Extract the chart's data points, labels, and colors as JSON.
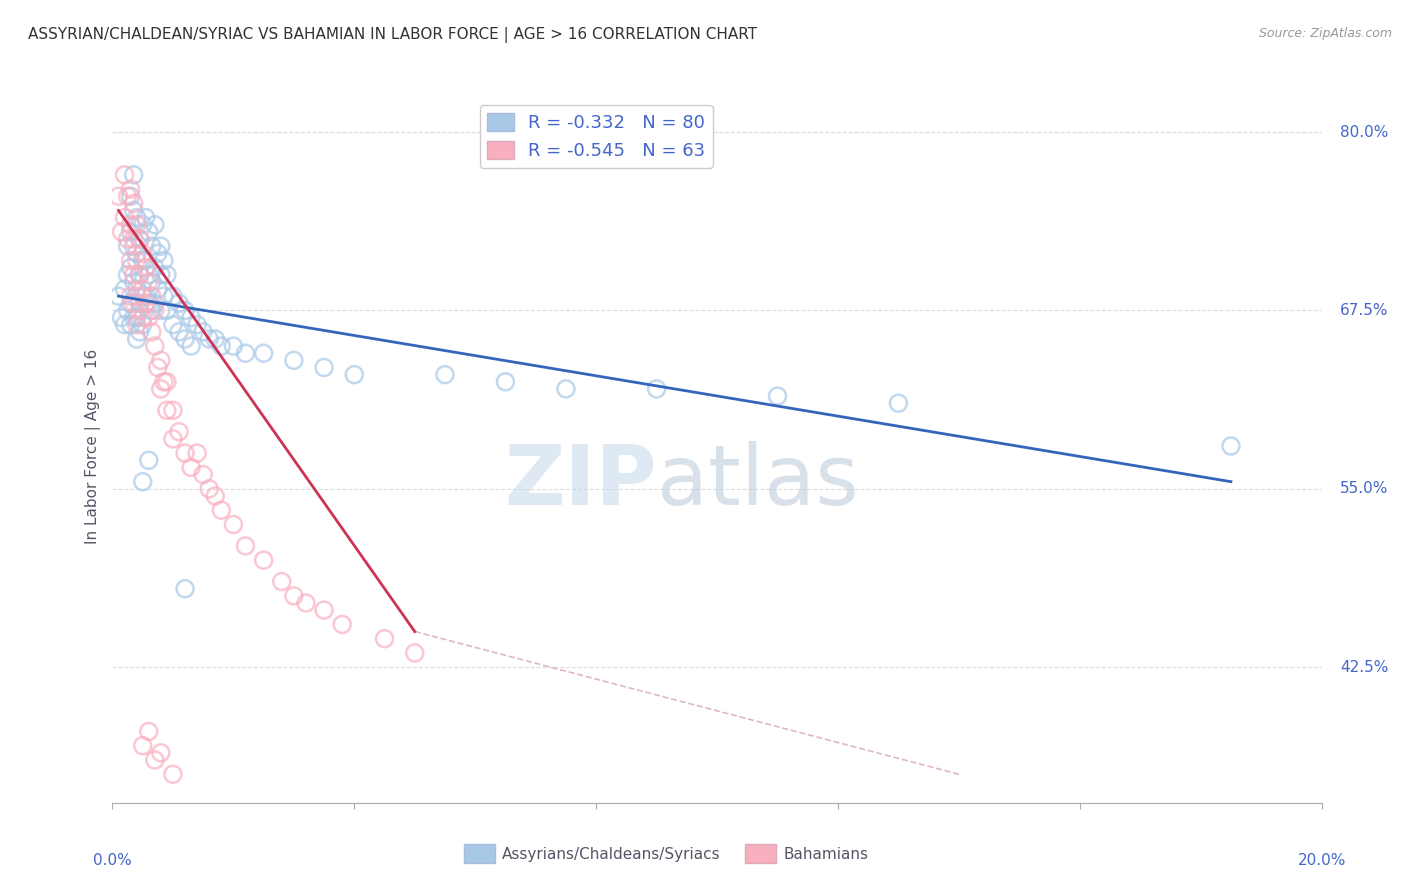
{
  "title": "ASSYRIAN/CHALDEAN/SYRIAC VS BAHAMIAN IN LABOR FORCE | AGE > 16 CORRELATION CHART",
  "source": "Source: ZipAtlas.com",
  "ylabel": "In Labor Force | Age > 16",
  "xlim": [
    0.0,
    20.0
  ],
  "ylim": [
    33.0,
    83.0
  ],
  "yticks": [
    42.5,
    55.0,
    67.5,
    80.0
  ],
  "ytick_labels": [
    "42.5%",
    "55.0%",
    "67.5%",
    "80.0%"
  ],
  "blue_R": -0.332,
  "blue_N": 80,
  "pink_R": -0.545,
  "pink_N": 63,
  "blue_color": "#a8c8e8",
  "pink_color": "#f8b0c0",
  "blue_line_color": "#3366bb",
  "pink_line_color": "#cc3355",
  "dashed_line_color": "#ddbbbb",
  "tick_label_color": "#4466cc",
  "background_color": "#ffffff",
  "grid_color": "#dddddd",
  "blue_scatter": [
    [
      0.1,
      68.5
    ],
    [
      0.15,
      67.0
    ],
    [
      0.2,
      69.0
    ],
    [
      0.2,
      66.5
    ],
    [
      0.25,
      72.0
    ],
    [
      0.25,
      70.0
    ],
    [
      0.25,
      67.5
    ],
    [
      0.3,
      75.5
    ],
    [
      0.3,
      73.0
    ],
    [
      0.3,
      70.5
    ],
    [
      0.3,
      68.0
    ],
    [
      0.3,
      66.5
    ],
    [
      0.35,
      77.0
    ],
    [
      0.35,
      74.5
    ],
    [
      0.35,
      72.0
    ],
    [
      0.35,
      69.5
    ],
    [
      0.35,
      67.0
    ],
    [
      0.4,
      74.0
    ],
    [
      0.4,
      71.5
    ],
    [
      0.4,
      69.0
    ],
    [
      0.4,
      67.0
    ],
    [
      0.4,
      65.5
    ],
    [
      0.45,
      72.5
    ],
    [
      0.45,
      70.0
    ],
    [
      0.45,
      68.0
    ],
    [
      0.45,
      66.0
    ],
    [
      0.5,
      73.5
    ],
    [
      0.5,
      71.0
    ],
    [
      0.5,
      68.5
    ],
    [
      0.5,
      66.5
    ],
    [
      0.55,
      74.0
    ],
    [
      0.55,
      71.0
    ],
    [
      0.55,
      68.5
    ],
    [
      0.6,
      73.0
    ],
    [
      0.6,
      70.0
    ],
    [
      0.6,
      68.0
    ],
    [
      0.65,
      72.0
    ],
    [
      0.65,
      69.5
    ],
    [
      0.65,
      67.5
    ],
    [
      0.7,
      73.5
    ],
    [
      0.7,
      70.5
    ],
    [
      0.7,
      68.0
    ],
    [
      0.75,
      71.5
    ],
    [
      0.75,
      69.0
    ],
    [
      0.8,
      72.0
    ],
    [
      0.8,
      70.0
    ],
    [
      0.8,
      67.5
    ],
    [
      0.85,
      71.0
    ],
    [
      0.85,
      68.5
    ],
    [
      0.9,
      70.0
    ],
    [
      0.9,
      67.5
    ],
    [
      1.0,
      68.5
    ],
    [
      1.0,
      66.5
    ],
    [
      1.1,
      68.0
    ],
    [
      1.1,
      66.0
    ],
    [
      1.2,
      67.5
    ],
    [
      1.2,
      65.5
    ],
    [
      1.3,
      67.0
    ],
    [
      1.3,
      65.0
    ],
    [
      1.4,
      66.5
    ],
    [
      1.5,
      66.0
    ],
    [
      1.6,
      65.5
    ],
    [
      1.7,
      65.5
    ],
    [
      1.8,
      65.0
    ],
    [
      2.0,
      65.0
    ],
    [
      2.2,
      64.5
    ],
    [
      2.5,
      64.5
    ],
    [
      3.0,
      64.0
    ],
    [
      3.5,
      63.5
    ],
    [
      4.0,
      63.0
    ],
    [
      5.5,
      63.0
    ],
    [
      6.5,
      62.5
    ],
    [
      7.5,
      62.0
    ],
    [
      9.0,
      62.0
    ],
    [
      11.0,
      61.5
    ],
    [
      13.0,
      61.0
    ],
    [
      0.6,
      57.0
    ],
    [
      18.5,
      58.0
    ],
    [
      1.2,
      48.0
    ],
    [
      0.5,
      55.5
    ]
  ],
  "pink_scatter": [
    [
      0.1,
      75.5
    ],
    [
      0.15,
      73.0
    ],
    [
      0.2,
      77.0
    ],
    [
      0.2,
      74.0
    ],
    [
      0.25,
      75.5
    ],
    [
      0.25,
      72.5
    ],
    [
      0.3,
      76.0
    ],
    [
      0.3,
      73.5
    ],
    [
      0.3,
      71.0
    ],
    [
      0.3,
      68.5
    ],
    [
      0.35,
      75.0
    ],
    [
      0.35,
      72.5
    ],
    [
      0.35,
      70.0
    ],
    [
      0.35,
      68.0
    ],
    [
      0.4,
      73.5
    ],
    [
      0.4,
      71.0
    ],
    [
      0.4,
      68.5
    ],
    [
      0.4,
      66.5
    ],
    [
      0.45,
      72.5
    ],
    [
      0.45,
      70.0
    ],
    [
      0.45,
      67.5
    ],
    [
      0.5,
      71.5
    ],
    [
      0.5,
      69.0
    ],
    [
      0.5,
      67.0
    ],
    [
      0.55,
      70.5
    ],
    [
      0.55,
      68.0
    ],
    [
      0.6,
      69.5
    ],
    [
      0.6,
      67.0
    ],
    [
      0.65,
      68.5
    ],
    [
      0.65,
      66.0
    ],
    [
      0.7,
      67.5
    ],
    [
      0.7,
      65.0
    ],
    [
      0.75,
      63.5
    ],
    [
      0.8,
      64.0
    ],
    [
      0.8,
      62.0
    ],
    [
      0.85,
      62.5
    ],
    [
      0.9,
      62.5
    ],
    [
      0.9,
      60.5
    ],
    [
      1.0,
      60.5
    ],
    [
      1.0,
      58.5
    ],
    [
      1.1,
      59.0
    ],
    [
      1.2,
      57.5
    ],
    [
      1.3,
      56.5
    ],
    [
      1.4,
      57.5
    ],
    [
      1.5,
      56.0
    ],
    [
      1.6,
      55.0
    ],
    [
      1.7,
      54.5
    ],
    [
      1.8,
      53.5
    ],
    [
      2.0,
      52.5
    ],
    [
      2.2,
      51.0
    ],
    [
      2.5,
      50.0
    ],
    [
      2.8,
      48.5
    ],
    [
      3.0,
      47.5
    ],
    [
      3.2,
      47.0
    ],
    [
      3.5,
      46.5
    ],
    [
      3.8,
      45.5
    ],
    [
      0.5,
      37.0
    ],
    [
      0.7,
      36.0
    ],
    [
      4.5,
      44.5
    ],
    [
      5.0,
      43.5
    ],
    [
      0.6,
      38.0
    ],
    [
      0.8,
      36.5
    ],
    [
      1.0,
      35.0
    ]
  ],
  "blue_line_x": [
    0.1,
    18.5
  ],
  "blue_line_y": [
    68.5,
    55.5
  ],
  "pink_line_x": [
    0.1,
    5.0
  ],
  "pink_line_y": [
    74.5,
    45.0
  ],
  "dash_line_x": [
    5.0,
    14.0
  ],
  "dash_line_y": [
    45.0,
    35.0
  ]
}
